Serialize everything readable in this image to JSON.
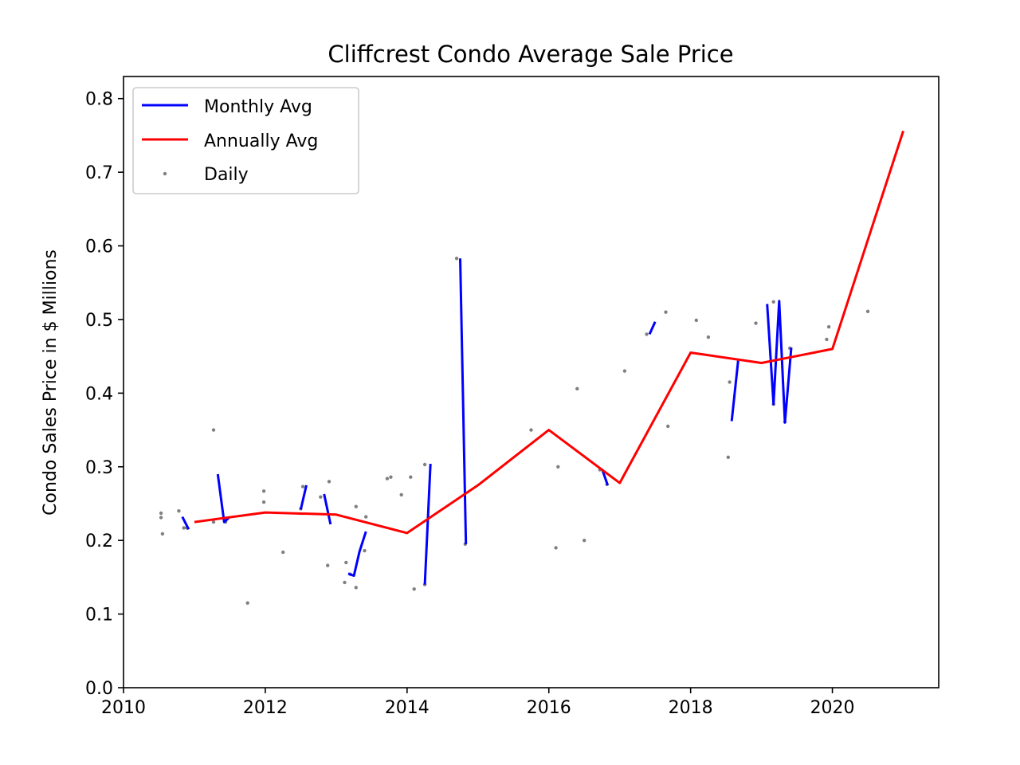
{
  "chart_data": {
    "type": "line",
    "title": "Cliffcrest Condo Average Sale Price",
    "xlabel": "",
    "ylabel": "Condo Sales Price in $ Millions",
    "xlim": [
      2010,
      2021.5
    ],
    "ylim": [
      0.0,
      0.83
    ],
    "xticks": [
      2010,
      2012,
      2014,
      2016,
      2018,
      2020
    ],
    "yticks": [
      0.0,
      0.1,
      0.2,
      0.3,
      0.4,
      0.5,
      0.6,
      0.7,
      0.8
    ],
    "xtick_labels": [
      "2010",
      "2012",
      "2014",
      "2016",
      "2018",
      "2020"
    ],
    "ytick_labels": [
      "0.0",
      "0.1",
      "0.2",
      "0.3",
      "0.4",
      "0.5",
      "0.6",
      "0.7",
      "0.8"
    ],
    "legend": {
      "position": "top-left",
      "entries": [
        "Monthly Avg",
        "Annually Avg",
        "Daily"
      ]
    },
    "series": [
      {
        "name": "Monthly Avg",
        "kind": "line",
        "color": "#0000ff",
        "segments": [
          [
            [
              2010.83,
              0.232
            ],
            [
              2010.92,
              0.215
            ]
          ],
          [
            [
              2011.33,
              0.29
            ],
            [
              2011.42,
              0.225
            ],
            [
              2011.5,
              0.232
            ]
          ],
          [
            [
              2012.5,
              0.242
            ],
            [
              2012.58,
              0.275
            ]
          ],
          [
            [
              2012.83,
              0.263
            ],
            [
              2012.92,
              0.222
            ]
          ],
          [
            [
              2013.17,
              0.155
            ],
            [
              2013.25,
              0.152
            ],
            [
              2013.33,
              0.185
            ],
            [
              2013.42,
              0.212
            ]
          ],
          [
            [
              2014.25,
              0.14
            ],
            [
              2014.33,
              0.304
            ]
          ],
          [
            [
              2014.75,
              0.583
            ],
            [
              2014.83,
              0.195
            ]
          ],
          [
            [
              2016.75,
              0.297
            ],
            [
              2016.83,
              0.275
            ]
          ],
          [
            [
              2017.42,
              0.48
            ],
            [
              2017.5,
              0.497
            ]
          ],
          [
            [
              2018.58,
              0.362
            ],
            [
              2018.67,
              0.444
            ]
          ],
          [
            [
              2019.08,
              0.521
            ],
            [
              2019.17,
              0.385
            ],
            [
              2019.25,
              0.525
            ],
            [
              2019.33,
              0.36
            ],
            [
              2019.42,
              0.462
            ]
          ]
        ]
      },
      {
        "name": "Annually Avg",
        "kind": "line",
        "color": "#ff0000",
        "x": [
          2011,
          2012,
          2013,
          2014,
          2015,
          2016,
          2017,
          2018,
          2019,
          2020,
          2021
        ],
        "y": [
          0.225,
          0.238,
          0.235,
          0.21,
          0.275,
          0.35,
          0.278,
          0.455,
          0.441,
          0.46,
          0.756
        ]
      },
      {
        "name": "Daily",
        "kind": "scatter",
        "color": "#808080",
        "points": [
          [
            2010.53,
            0.237
          ],
          [
            2010.53,
            0.231
          ],
          [
            2010.55,
            0.209
          ],
          [
            2010.78,
            0.24
          ],
          [
            2010.85,
            0.217
          ],
          [
            2010.89,
            0.217
          ],
          [
            2011.27,
            0.35
          ],
          [
            2011.27,
            0.225
          ],
          [
            2011.44,
            0.225
          ],
          [
            2011.75,
            0.115
          ],
          [
            2011.98,
            0.267
          ],
          [
            2011.98,
            0.252
          ],
          [
            2012.25,
            0.184
          ],
          [
            2012.5,
            0.243
          ],
          [
            2012.53,
            0.273
          ],
          [
            2012.78,
            0.259
          ],
          [
            2012.88,
            0.166
          ],
          [
            2012.9,
            0.28
          ],
          [
            2013.12,
            0.143
          ],
          [
            2013.14,
            0.17
          ],
          [
            2013.2,
            0.154
          ],
          [
            2013.28,
            0.246
          ],
          [
            2013.28,
            0.136
          ],
          [
            2013.42,
            0.232
          ],
          [
            2013.4,
            0.186
          ],
          [
            2013.72,
            0.284
          ],
          [
            2013.77,
            0.286
          ],
          [
            2013.92,
            0.262
          ],
          [
            2014.05,
            0.286
          ],
          [
            2014.1,
            0.134
          ],
          [
            2014.25,
            0.303
          ],
          [
            2014.25,
            0.14
          ],
          [
            2014.7,
            0.583
          ],
          [
            2014.82,
            0.195
          ],
          [
            2015.75,
            0.35
          ],
          [
            2016.1,
            0.19
          ],
          [
            2016.13,
            0.3
          ],
          [
            2016.4,
            0.406
          ],
          [
            2016.5,
            0.2
          ],
          [
            2016.72,
            0.296
          ],
          [
            2016.82,
            0.276
          ],
          [
            2017.07,
            0.43
          ],
          [
            2017.38,
            0.48
          ],
          [
            2017.65,
            0.51
          ],
          [
            2017.68,
            0.355
          ],
          [
            2018.08,
            0.499
          ],
          [
            2018.25,
            0.476
          ],
          [
            2018.53,
            0.313
          ],
          [
            2018.55,
            0.415
          ],
          [
            2018.92,
            0.495
          ],
          [
            2019.17,
            0.524
          ],
          [
            2019.17,
            0.385
          ],
          [
            2019.33,
            0.361
          ],
          [
            2019.4,
            0.461
          ],
          [
            2019.92,
            0.473
          ],
          [
            2019.95,
            0.49
          ],
          [
            2020.5,
            0.511
          ]
        ]
      }
    ]
  }
}
